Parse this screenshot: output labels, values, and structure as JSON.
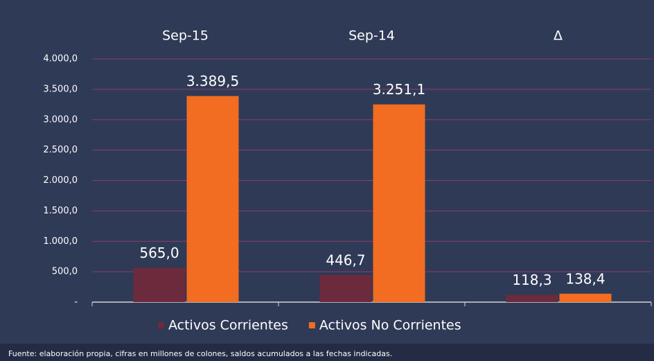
{
  "chart_data": {
    "type": "bar",
    "categories": [
      "Sep-15",
      "Sep-14",
      "Δ"
    ],
    "series": [
      {
        "name": "Activos Corrientes",
        "color": "#6b2b3c",
        "values": [
          565.0,
          446.7,
          118.3
        ],
        "value_labels": [
          "565,0",
          "446,7",
          "118,3"
        ]
      },
      {
        "name": "Activos No Corrientes",
        "color": "#f26d21",
        "values": [
          3389.5,
          3251.1,
          138.4
        ],
        "value_labels": [
          "3.389,5",
          "3.251,1",
          "138,4"
        ]
      }
    ],
    "ylim": [
      0,
      4000
    ],
    "yticks": [
      {
        "value": 0,
        "label": "-"
      },
      {
        "value": 500,
        "label": "500,0"
      },
      {
        "value": 1000,
        "label": "1.000,0"
      },
      {
        "value": 1500,
        "label": "1.500,0"
      },
      {
        "value": 2000,
        "label": "2.000,0"
      },
      {
        "value": 2500,
        "label": "2.500,0"
      },
      {
        "value": 3000,
        "label": "3.000,0"
      },
      {
        "value": 3500,
        "label": "3.500,0"
      },
      {
        "value": 4000,
        "label": "4.000,0"
      }
    ],
    "grid": true,
    "legend": "bottom",
    "source": "Fuente: elaboración propia, cifras en millones de colones, saldos acumulados a las fechas indicadas."
  }
}
